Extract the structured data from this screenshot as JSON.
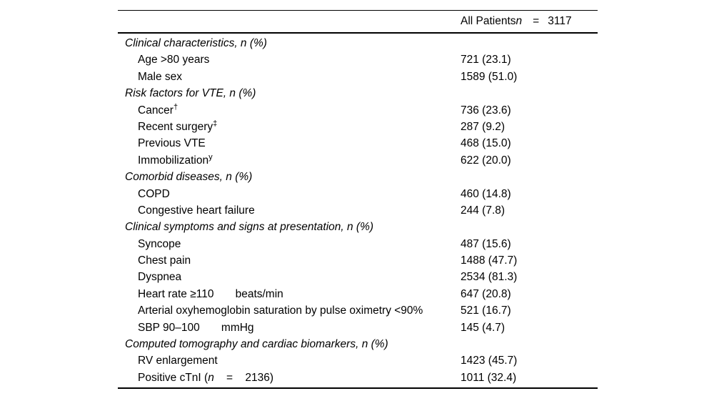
{
  "table": {
    "header": {
      "column_label": "All Patients",
      "n_symbol": "n",
      "equals": "=",
      "n_value": "3117"
    },
    "sections": [
      {
        "title": "Clinical characteristics, n (%)",
        "rows": [
          {
            "label": "Age >80 years",
            "value": "721 (23.1)"
          },
          {
            "label": "Male sex",
            "value": "1589 (51.0)"
          }
        ]
      },
      {
        "title": "Risk factors for VTE, n (%)",
        "rows": [
          {
            "label": "Cancer",
            "sup": "†",
            "value": "736 (23.6)"
          },
          {
            "label": "Recent surgery",
            "sup": "‡",
            "value": "287 (9.2)"
          },
          {
            "label": "Previous VTE",
            "value": "468 (15.0)"
          },
          {
            "label": "Immobilization",
            "sup": "y",
            "value": "622 (20.0)"
          }
        ]
      },
      {
        "title": "Comorbid diseases, n (%)",
        "rows": [
          {
            "label": "COPD",
            "value": "460 (14.8)"
          },
          {
            "label": "Congestive heart failure",
            "value": "244 (7.8)"
          }
        ]
      },
      {
        "title": "Clinical symptoms and signs at presentation, n (%)",
        "rows": [
          {
            "label": "Syncope",
            "value": "487 (15.6)"
          },
          {
            "label": "Chest pain",
            "value": "1488 (47.7)"
          },
          {
            "label": "Dyspnea",
            "value": "2534 (81.3)"
          },
          {
            "label": "Heart rate ≥110       beats/min",
            "value": "647 (20.8)"
          },
          {
            "label": "Arterial oxyhemoglobin saturation by pulse oximetry <90%",
            "value": "521 (16.7)"
          },
          {
            "label": "SBP 90–100       mmHg",
            "value": "145 (4.7)"
          }
        ]
      },
      {
        "title": "Computed tomography and cardiac biomarkers, n (%)",
        "rows": [
          {
            "label": "RV enlargement",
            "value": "1423 (45.7)"
          },
          {
            "label": "Positive cTnI (",
            "em": "n",
            "tail": "    =    2136)",
            "value": "1011 (32.4)"
          }
        ]
      }
    ]
  }
}
